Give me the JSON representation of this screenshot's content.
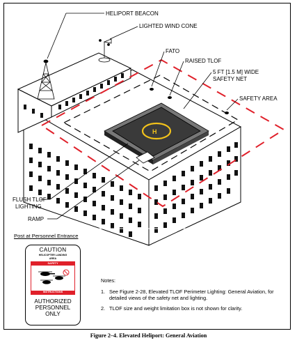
{
  "labels": {
    "beacon": "HELIPORT BEACON",
    "wind_cone": "LIGHTED WIND CONE",
    "fato": "FATO",
    "raised_tlof": "RAISED TLOF",
    "safety_net_1": "5 FT [1.5 M] WIDE",
    "safety_net_2": "SAFETY NET",
    "safety_area": "SAFETY AREA",
    "flush_tlof_1": "FLUSH TLOF",
    "flush_tlof_2": "LIGHTING",
    "ramp": "RAMP"
  },
  "post_label": "Post at Personnel Entrance",
  "sign": {
    "caution": "CAUTION",
    "heli_line1": "HELICOPTER LANDING",
    "heli_line2": "AREA",
    "safety": "SAFETY",
    "instructions": "INSTRUCTIONS",
    "line1": "AUTHORIZED",
    "line2": "PERSONNEL",
    "line3": "ONLY"
  },
  "notes": {
    "title": "Notes:",
    "items": [
      {
        "num": "1.",
        "text": "See Figure 2-28, Elevated TLOF Perimeter Lighting: General Aviation, for detailed views of the safety net and lighting."
      },
      {
        "num": "2.",
        "text": "TLOF size and weight limitation box is  not shown for clarity."
      }
    ]
  },
  "caption": "Figure 2–4. Elevated Heliport: General Aviation",
  "colors": {
    "safety_red": "#e0202a",
    "tlof_yellow": "#f2c21b"
  }
}
